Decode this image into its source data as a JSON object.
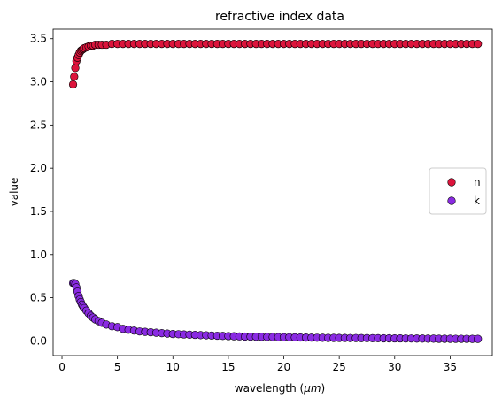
{
  "chart_data": {
    "type": "scatter",
    "title": "refractive index data",
    "xlabel_prefix": "wavelength (",
    "xlabel_unit": "μm",
    "xlabel_suffix": ")",
    "ylabel": "value",
    "xlim": [
      -0.8,
      38.8
    ],
    "ylim": [
      -0.17,
      3.61
    ],
    "xticks": [
      0,
      5,
      10,
      15,
      20,
      25,
      30,
      35
    ],
    "xtick_labels": [
      "0",
      "5",
      "10",
      "15",
      "20",
      "25",
      "30",
      "35"
    ],
    "yticks": [
      0.0,
      0.5,
      1.0,
      1.5,
      2.0,
      2.5,
      3.0,
      3.5
    ],
    "ytick_labels": [
      "0.0",
      "0.5",
      "1.0",
      "1.5",
      "2.0",
      "2.5",
      "3.0",
      "3.5"
    ],
    "grid": false,
    "legend_position": "center-right",
    "series": [
      {
        "name": "n",
        "color": "#dc143c",
        "x": [
          1.0,
          1.1,
          1.2,
          1.3,
          1.4,
          1.5,
          1.6,
          1.7,
          1.8,
          1.9,
          2.0,
          2.2,
          2.4,
          2.6,
          2.8,
          3.0,
          3.3,
          3.6,
          4.0,
          4.5,
          5.0,
          5.5,
          6.0,
          6.5,
          7.0,
          7.5,
          8.0,
          8.5,
          9.0,
          9.5,
          10.0,
          10.5,
          11.0,
          11.5,
          12.0,
          12.5,
          13.0,
          13.5,
          14.0,
          14.5,
          15.0,
          15.5,
          16.0,
          16.5,
          17.0,
          17.5,
          18.0,
          18.5,
          19.0,
          19.5,
          20.0,
          20.5,
          21.0,
          21.5,
          22.0,
          22.5,
          23.0,
          23.5,
          24.0,
          24.5,
          25.0,
          25.5,
          26.0,
          26.5,
          27.0,
          27.5,
          28.0,
          28.5,
          29.0,
          29.5,
          30.0,
          30.5,
          31.0,
          31.5,
          32.0,
          32.5,
          33.0,
          33.5,
          34.0,
          34.5,
          35.0,
          35.5,
          36.0,
          36.5,
          37.0,
          37.5
        ],
        "y": [
          2.97,
          3.06,
          3.16,
          3.24,
          3.28,
          3.31,
          3.34,
          3.36,
          3.37,
          3.38,
          3.39,
          3.4,
          3.41,
          3.42,
          3.42,
          3.43,
          3.43,
          3.43,
          3.43,
          3.44,
          3.44,
          3.44,
          3.44,
          3.44,
          3.44,
          3.44,
          3.44,
          3.44,
          3.44,
          3.44,
          3.44,
          3.44,
          3.44,
          3.44,
          3.44,
          3.44,
          3.44,
          3.44,
          3.44,
          3.44,
          3.44,
          3.44,
          3.44,
          3.44,
          3.44,
          3.44,
          3.44,
          3.44,
          3.44,
          3.44,
          3.44,
          3.44,
          3.44,
          3.44,
          3.44,
          3.44,
          3.44,
          3.44,
          3.44,
          3.44,
          3.44,
          3.44,
          3.44,
          3.44,
          3.44,
          3.44,
          3.44,
          3.44,
          3.44,
          3.44,
          3.44,
          3.44,
          3.44,
          3.44,
          3.44,
          3.44,
          3.44,
          3.44,
          3.44,
          3.44,
          3.44,
          3.44,
          3.44,
          3.44,
          3.44,
          3.44
        ]
      },
      {
        "name": "k",
        "color": "#8a2be2",
        "x": [
          1.0,
          1.1,
          1.2,
          1.3,
          1.4,
          1.5,
          1.6,
          1.7,
          1.8,
          1.9,
          2.0,
          2.2,
          2.4,
          2.6,
          2.8,
          3.0,
          3.3,
          3.6,
          4.0,
          4.5,
          5.0,
          5.5,
          6.0,
          6.5,
          7.0,
          7.5,
          8.0,
          8.5,
          9.0,
          9.5,
          10.0,
          10.5,
          11.0,
          11.5,
          12.0,
          12.5,
          13.0,
          13.5,
          14.0,
          14.5,
          15.0,
          15.5,
          16.0,
          16.5,
          17.0,
          17.5,
          18.0,
          18.5,
          19.0,
          19.5,
          20.0,
          20.5,
          21.0,
          21.5,
          22.0,
          22.5,
          23.0,
          23.5,
          24.0,
          24.5,
          25.0,
          25.5,
          26.0,
          26.5,
          27.0,
          27.5,
          28.0,
          28.5,
          29.0,
          29.5,
          30.0,
          30.5,
          31.0,
          31.5,
          32.0,
          32.5,
          33.0,
          33.5,
          34.0,
          34.5,
          35.0,
          35.5,
          36.0,
          36.5,
          37.0,
          37.5
        ],
        "y": [
          0.67,
          0.67,
          0.66,
          0.62,
          0.57,
          0.52,
          0.48,
          0.45,
          0.42,
          0.4,
          0.38,
          0.35,
          0.32,
          0.29,
          0.27,
          0.25,
          0.23,
          0.21,
          0.19,
          0.17,
          0.16,
          0.14,
          0.13,
          0.12,
          0.11,
          0.105,
          0.1,
          0.095,
          0.09,
          0.085,
          0.08,
          0.078,
          0.075,
          0.072,
          0.07,
          0.067,
          0.065,
          0.062,
          0.06,
          0.058,
          0.056,
          0.054,
          0.052,
          0.05,
          0.049,
          0.048,
          0.047,
          0.046,
          0.045,
          0.044,
          0.043,
          0.042,
          0.041,
          0.04,
          0.039,
          0.038,
          0.037,
          0.036,
          0.035,
          0.035,
          0.034,
          0.034,
          0.033,
          0.033,
          0.032,
          0.032,
          0.031,
          0.031,
          0.03,
          0.03,
          0.029,
          0.029,
          0.028,
          0.028,
          0.027,
          0.027,
          0.026,
          0.026,
          0.025,
          0.025,
          0.025,
          0.024,
          0.024,
          0.024,
          0.023,
          0.023
        ]
      }
    ]
  }
}
